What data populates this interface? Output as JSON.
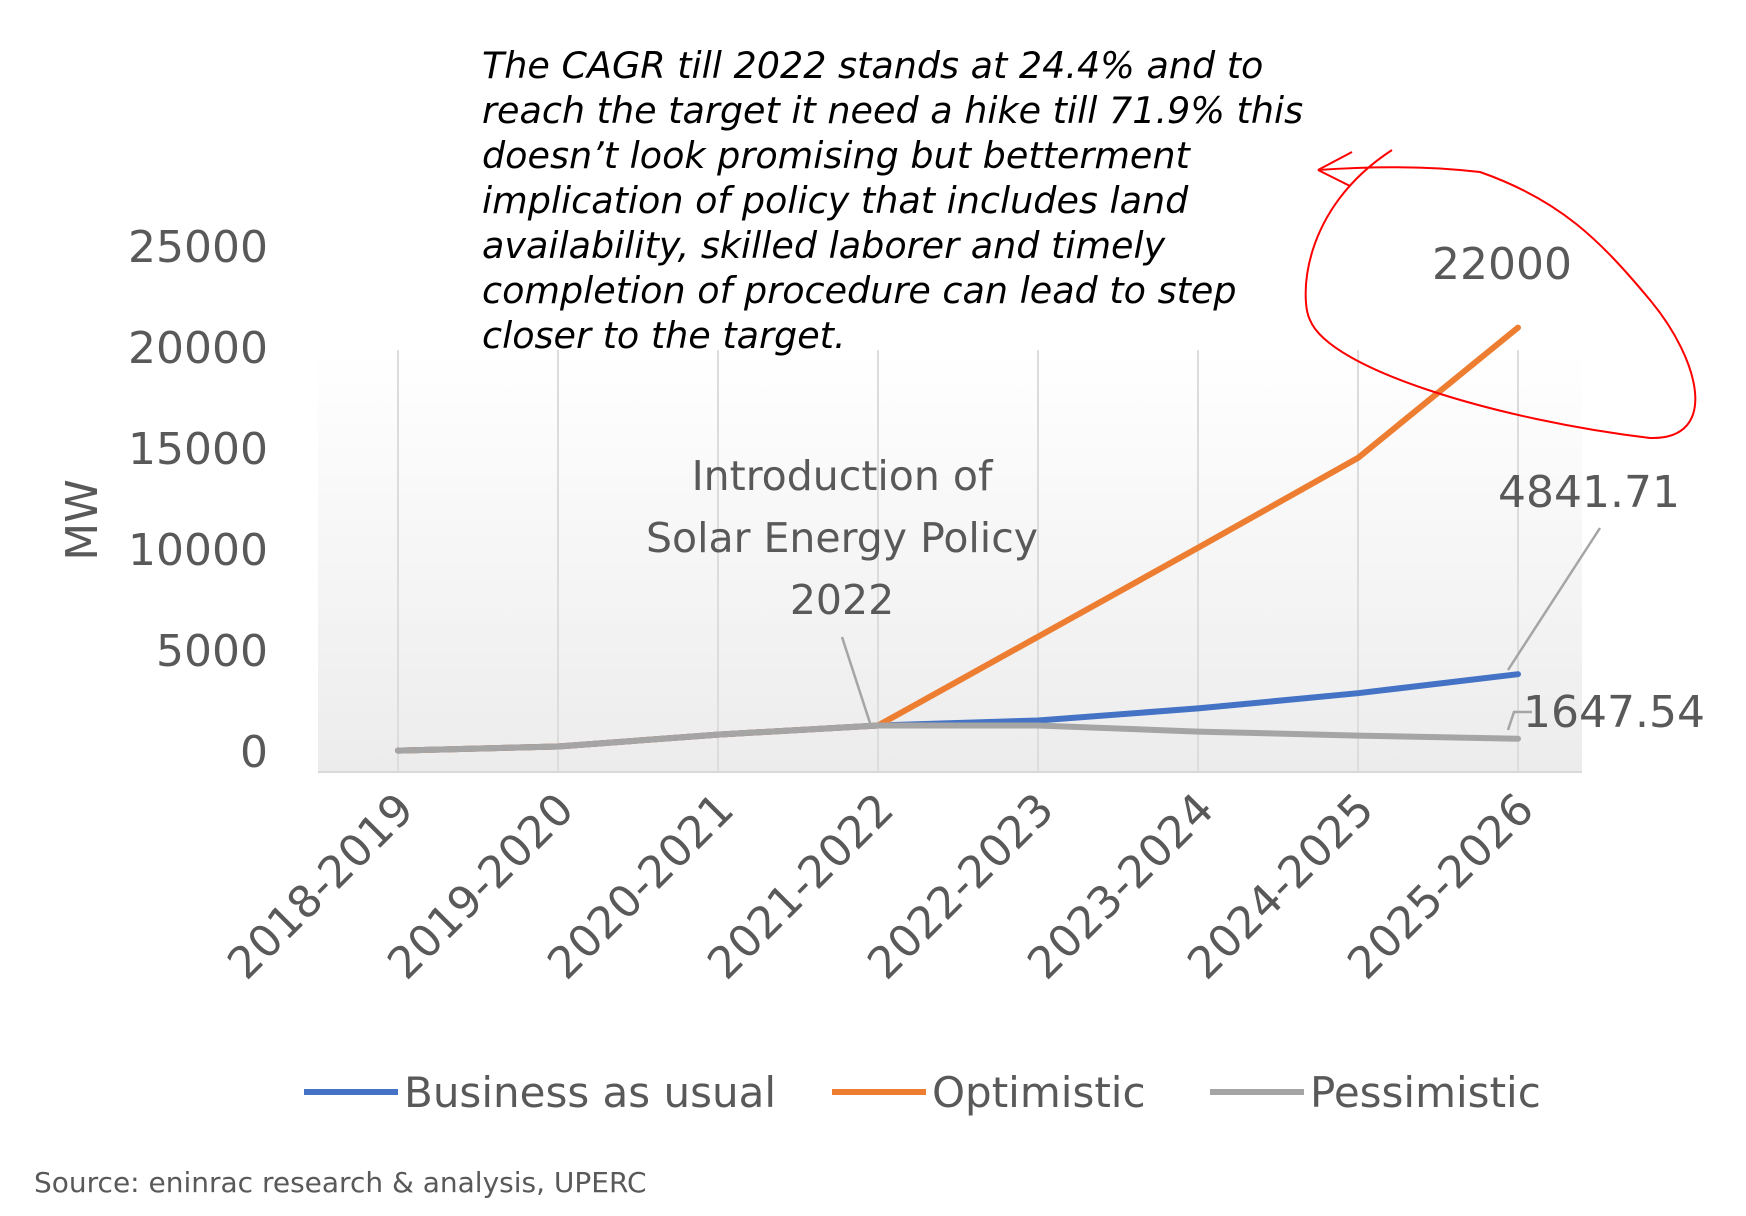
{
  "chart_data": {
    "type": "line",
    "categories": [
      "2018-2019",
      "2019-2020",
      "2020-2021",
      "2021-2022",
      "2022-2023",
      "2023-2024",
      "2024-2025",
      "2025-2026"
    ],
    "series": [
      {
        "name": "Business as usual",
        "color": "#4472c4",
        "values": [
          1060,
          1260,
          1850,
          2300,
          2550,
          3150,
          3900,
          4841.71
        ]
      },
      {
        "name": "Optimistic",
        "color": "#ed7d31",
        "values": [
          1060,
          1260,
          1850,
          2300,
          6700,
          11100,
          15550,
          22000
        ]
      },
      {
        "name": "Pessimistic",
        "color": "#a5a5a5",
        "values": [
          1060,
          1260,
          1850,
          2300,
          2300,
          2000,
          1800,
          1647.54
        ]
      }
    ],
    "ylabel": "MW",
    "xlabel": "",
    "ylim": [
      0,
      25000
    ],
    "yticks": [
      "25000",
      "20000",
      "15000",
      "10000",
      "5000",
      "0"
    ],
    "data_labels": [
      "22000",
      "4841.71",
      "1647.54"
    ],
    "annotation": {
      "lines": [
        "Introduction of",
        "Solar Energy Policy",
        "2022"
      ],
      "target_category": "2021-2022"
    },
    "note_lines": [
      "The CAGR till 2022 stands at 24.4% and to",
      "reach the target it need a hike till 71.9% this",
      "doesn’t look promising but betterment",
      "implication of policy that includes land",
      "availability, skilled laborer and timely",
      "completion of procedure can lead to step",
      "closer to the target."
    ],
    "note_mark_color": "#ff0000",
    "source": "Source: eninrac research & analysis, UPERC"
  }
}
